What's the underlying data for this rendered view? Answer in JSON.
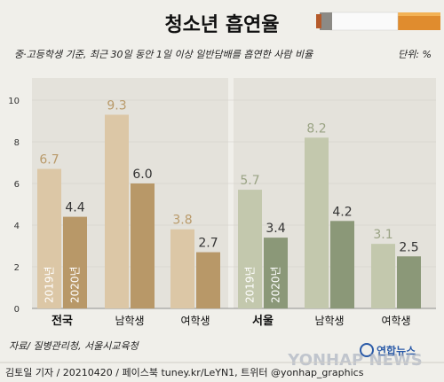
{
  "header": {
    "title": "청소년 흡연율",
    "subtitle": "중·고등학생 기준, 최근 30일 동안 1일 이상 일반담배를 흡연한 사람 비율",
    "unit": "단위: %"
  },
  "footer": {
    "source": "자료/ 질병관리청, 서울시교육청",
    "credit": "김토일 기자 / 20210420 / 페이스북 tuney.kr/LeYN1, 트위터 @yonhap_graphics",
    "logo_text": "연합뉴스",
    "watermark": "YONHAP NEWS"
  },
  "chart_data": {
    "type": "bar",
    "title": "청소년 흡연율",
    "ylim": [
      0,
      10
    ],
    "yticks": [
      0,
      2,
      4,
      6,
      8,
      10
    ],
    "series_names": [
      "2019년",
      "2020년"
    ],
    "groups": [
      {
        "label": "전국",
        "emphasis": true,
        "values": [
          6.7,
          4.4
        ]
      },
      {
        "label": "남학생",
        "emphasis": false,
        "values": [
          9.3,
          6.0
        ]
      },
      {
        "label": "여학생",
        "emphasis": false,
        "values": [
          3.8,
          2.7
        ]
      },
      {
        "label": "서울",
        "emphasis": true,
        "values": [
          5.7,
          3.4
        ]
      },
      {
        "label": "남학생",
        "emphasis": false,
        "values": [
          8.2,
          4.2
        ]
      },
      {
        "label": "여학생",
        "emphasis": false,
        "values": [
          3.1,
          2.5
        ]
      }
    ],
    "colors": {
      "national_2019": "#dcc7a6",
      "national_2020": "#b89868",
      "seoul_2019": "#c3c8ad",
      "seoul_2020": "#8b9878",
      "label_2019": "#b99a6a",
      "label_2019_seoul": "#9aa384",
      "label_2020": "#333333"
    }
  }
}
